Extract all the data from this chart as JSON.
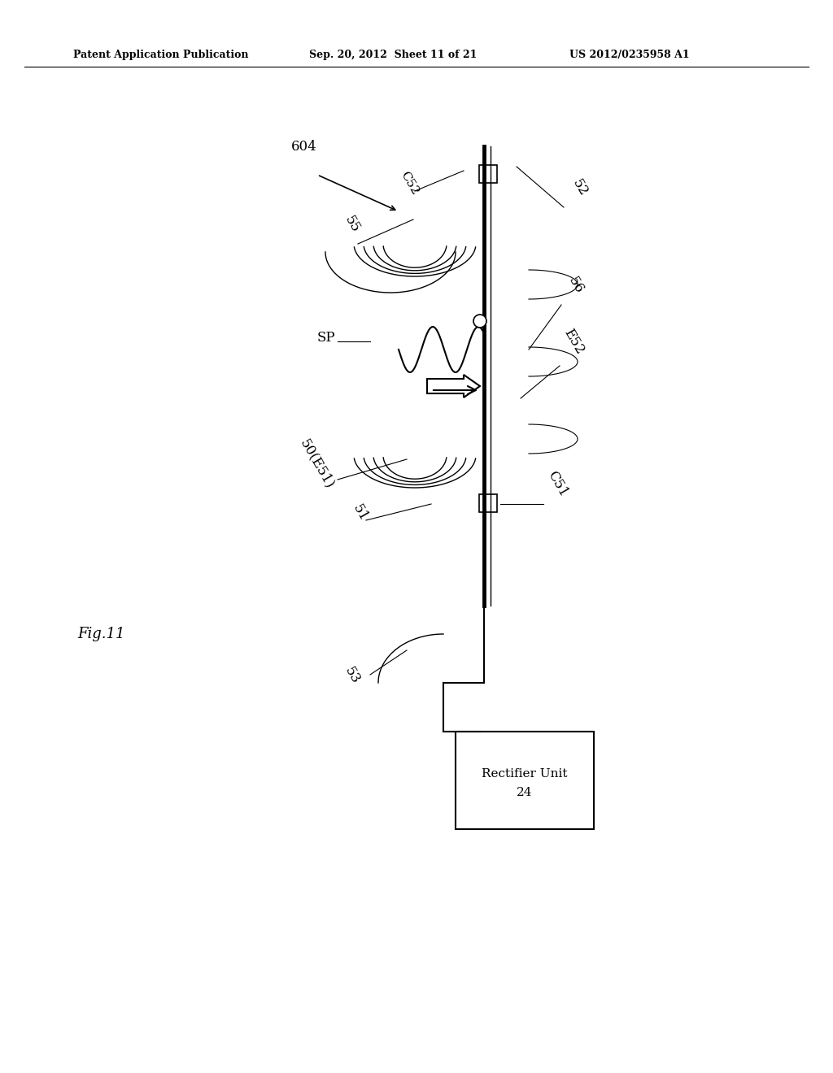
{
  "bg_color": "#ffffff",
  "header_text": "Patent Application Publication",
  "header_date": "Sep. 20, 2012  Sheet 11 of 21",
  "header_patent": "US 2012/0235958 A1",
  "fig_label": "Fig.11",
  "label_604": "604",
  "label_55": "55",
  "label_C52": "C52",
  "label_52": "52",
  "label_56": "56",
  "label_SP": "SP",
  "label_E52": "E52",
  "label_50E51": "50(E51)",
  "label_51": "51",
  "label_C51": "C51",
  "label_53": "53",
  "label_rectifier": "Rectifier Unit",
  "label_24": "24"
}
